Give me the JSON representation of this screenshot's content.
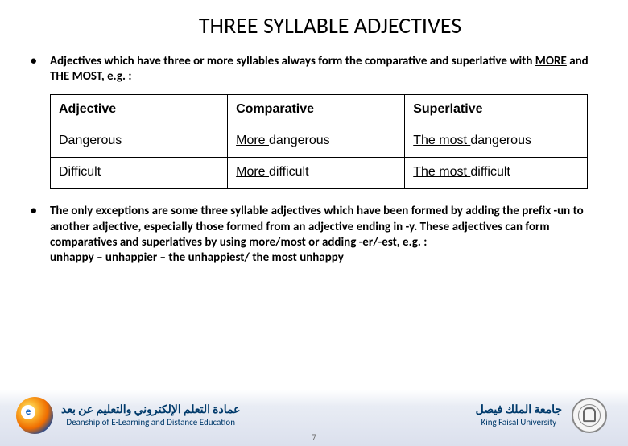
{
  "title": "THREE SYLLABLE ADJECTIVES",
  "bullet1": {
    "pre": "Adjectives which have three or more syllables always form the comparative and superlative with ",
    "u1": "MORE",
    "mid": " and ",
    "u2": "THE MOST",
    "post": ", e.g. :"
  },
  "table": {
    "h1": "Adjective",
    "h2": "Comparative",
    "h3": "Superlative",
    "r1c1": "Dangerous",
    "r1c2u": "More ",
    "r1c2": "dangerous",
    "r1c3u": "The most ",
    "r1c3": "dangerous",
    "r2c1": "Difficult",
    "r2c2u": "More ",
    "r2c2": "difficult",
    "r2c3u": "The most ",
    "r2c3": "difficult"
  },
  "bullet2": "The only exceptions are some three syllable adjectives which have been formed by adding the prefix -un to another adjective, especially those formed from an adjective ending in -y. These adjectives can form comparatives and superlatives by using more/most or adding -er/-est, e.g. :",
  "bullet2line2": "unhappy – unhappier – the unhappiest/ the most unhappy",
  "footer": {
    "leftAr": "عمادة التعلم الإلكتروني والتعليم عن بعد",
    "leftEn": "Deanship of E-Learning and Distance Education",
    "rightAr": "جامعة الملك فيصل",
    "rightEn": "King Faisal University"
  },
  "page": "7"
}
